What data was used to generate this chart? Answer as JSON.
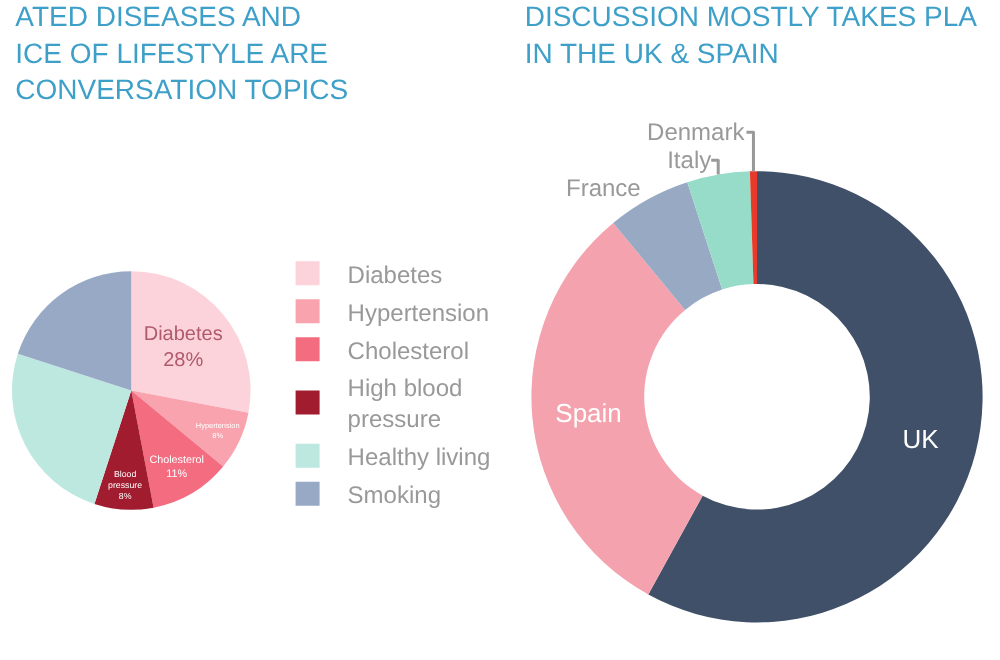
{
  "chart_data": [
    {
      "type": "pie",
      "title": "ATED DISEASES AND\nICE OF LIFESTYLE ARE\nCONVERSATION TOPICS",
      "categories": [
        "Diabetes",
        "Hypertension",
        "Cholesterol",
        "High blood\npressure",
        "Healthy living",
        "Smoking"
      ],
      "values": [
        28,
        8,
        11,
        8,
        25,
        20
      ],
      "colors": [
        "#fdd3db",
        "#f8a3ad",
        "#f46c80",
        "#a01c2e",
        "#bde8df",
        "#98a9c6"
      ],
      "value_labels": [
        "Diabetes\n28%",
        "Hypertension\n8%",
        "Cholesterol\n11%",
        "Blood\npressure\n8%",
        null,
        null
      ],
      "legend": "right"
    },
    {
      "type": "donut",
      "title": "DISCUSSION MOSTLY TAKES PLA\nIN THE UK & SPAIN",
      "categories": [
        "UK",
        "Spain",
        "France",
        "Italy",
        "Denmark"
      ],
      "values": [
        58,
        31,
        6,
        4.5,
        0.5
      ],
      "colors": [
        "#3f5068",
        "#f4a2ad",
        "#97a9c3",
        "#97dcc8",
        "#e83a2a"
      ],
      "data_labels": "names",
      "legend": false
    }
  ]
}
